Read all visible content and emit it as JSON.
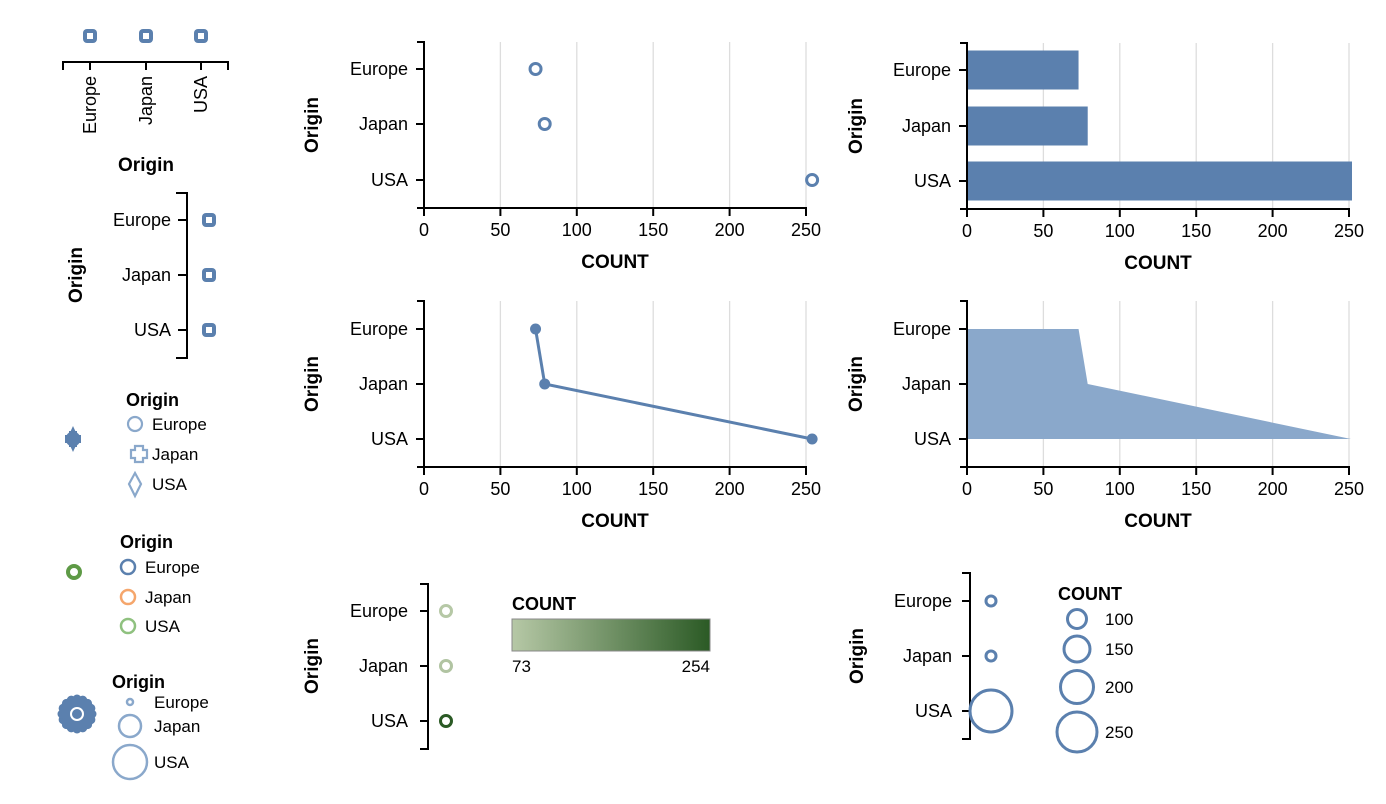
{
  "colors": {
    "blue": "#5b80ae",
    "blue_light": "#8aa8cb",
    "orange": "#f5a66c",
    "green": "#8fc17f",
    "green_dark": "#5e9a46",
    "ramp_start": "#b6c8a6",
    "ramp_end": "#2b5a25",
    "axis": "#000000",
    "grid": "#dddddd"
  },
  "chart_data": [
    {
      "id": "strip-x",
      "type": "scatter",
      "mark": "point",
      "x_field": "Origin",
      "categories": [
        "Europe",
        "Japan",
        "USA"
      ],
      "xlabel": "Origin"
    },
    {
      "id": "strip-y",
      "type": "scatter",
      "mark": "point",
      "y_field": "Origin",
      "categories": [
        "Europe",
        "Japan",
        "USA"
      ],
      "ylabel": "Origin"
    },
    {
      "id": "point-count",
      "type": "scatter",
      "mark": "point",
      "categories": [
        "Europe",
        "Japan",
        "USA"
      ],
      "values": [
        73,
        79,
        254
      ],
      "xlabel": "COUNT",
      "ylabel": "Origin",
      "xlim": [
        0,
        250
      ],
      "x_ticks": [
        0,
        50,
        100,
        150,
        200,
        250
      ],
      "grid": true
    },
    {
      "id": "bar-count",
      "type": "bar",
      "orientation": "horizontal",
      "categories": [
        "Europe",
        "Japan",
        "USA"
      ],
      "values": [
        73,
        79,
        254
      ],
      "xlabel": "COUNT",
      "ylabel": "Origin",
      "xlim": [
        0,
        250
      ],
      "x_ticks": [
        0,
        50,
        100,
        150,
        200,
        250
      ],
      "grid": true
    },
    {
      "id": "line-count",
      "type": "line",
      "categories": [
        "Europe",
        "Japan",
        "USA"
      ],
      "values": [
        73,
        79,
        254
      ],
      "xlabel": "COUNT",
      "ylabel": "Origin",
      "xlim": [
        0,
        250
      ],
      "x_ticks": [
        0,
        50,
        100,
        150,
        200,
        250
      ],
      "grid": true
    },
    {
      "id": "area-count",
      "type": "area",
      "categories": [
        "Europe",
        "Japan",
        "USA"
      ],
      "values": [
        73,
        79,
        254
      ],
      "xlabel": "COUNT",
      "ylabel": "Origin",
      "xlim": [
        0,
        250
      ],
      "x_ticks": [
        0,
        50,
        100,
        150,
        200,
        250
      ],
      "grid": true
    },
    {
      "id": "shape-legend",
      "type": "scatter",
      "encoding": "shape",
      "legend": {
        "title": "Origin",
        "items": [
          {
            "label": "Europe",
            "shape": "circle"
          },
          {
            "label": "Japan",
            "shape": "cross"
          },
          {
            "label": "USA",
            "shape": "diamond"
          }
        ]
      }
    },
    {
      "id": "color-legend",
      "type": "scatter",
      "encoding": "color",
      "legend": {
        "title": "Origin",
        "items": [
          {
            "label": "Europe",
            "color": "#5b80ae"
          },
          {
            "label": "Japan",
            "color": "#f5a66c"
          },
          {
            "label": "USA",
            "color": "#8fc17f"
          }
        ]
      }
    },
    {
      "id": "size-legend",
      "type": "scatter",
      "encoding": "size",
      "legend": {
        "title": "Origin",
        "items": [
          {
            "label": "Europe",
            "size": 1
          },
          {
            "label": "Japan",
            "size": 2
          },
          {
            "label": "USA",
            "size": 3
          }
        ]
      }
    },
    {
      "id": "color-count",
      "type": "scatter",
      "encoding": "color",
      "categories": [
        "Europe",
        "Japan",
        "USA"
      ],
      "values": [
        73,
        79,
        254
      ],
      "ylabel": "Origin",
      "legend": {
        "title": "COUNT",
        "min_label": "73",
        "max_label": "254",
        "domain": [
          73,
          254
        ]
      }
    },
    {
      "id": "size-count",
      "type": "scatter",
      "encoding": "size",
      "categories": [
        "Europe",
        "Japan",
        "USA"
      ],
      "values": [
        73,
        79,
        254
      ],
      "ylabel": "Origin",
      "legend": {
        "title": "COUNT",
        "values": [
          100,
          150,
          200,
          250
        ],
        "labels": [
          "100",
          "150",
          "200",
          "250"
        ]
      }
    }
  ]
}
